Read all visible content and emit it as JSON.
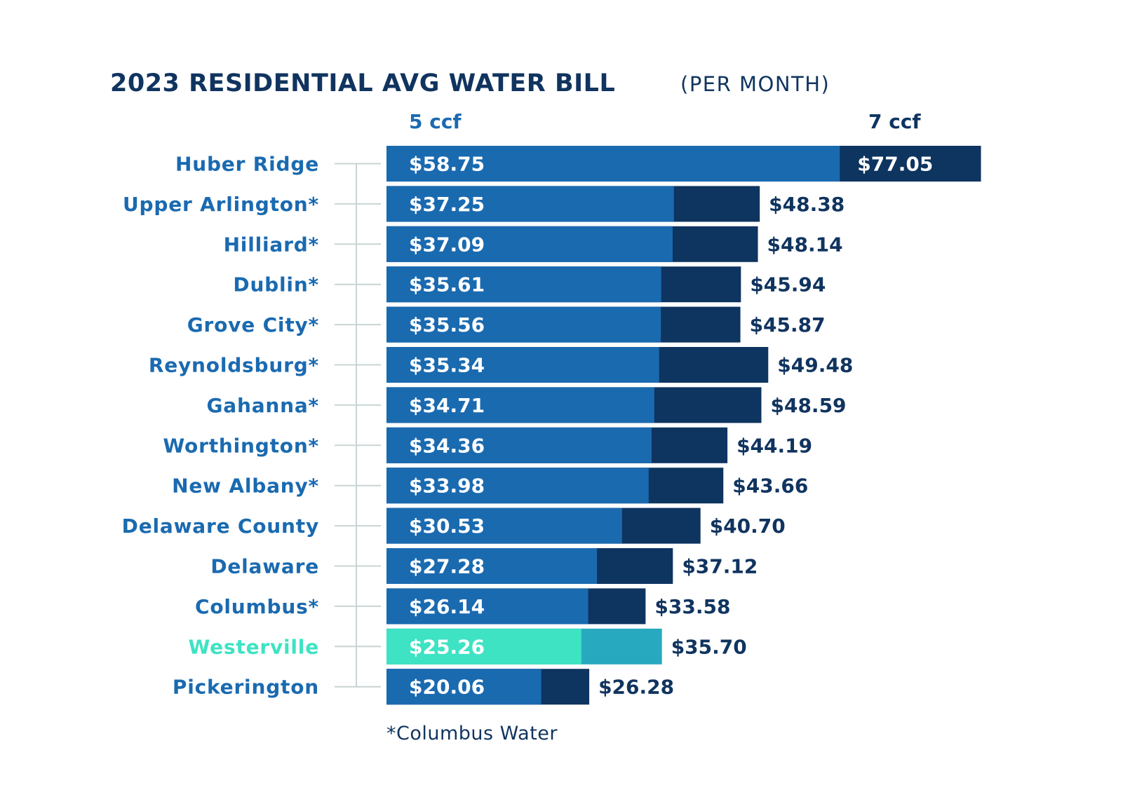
{
  "colors": {
    "primary": "#1a6ab0",
    "secondary": "#0e3460",
    "highlight_primary": "#3de3c3",
    "highlight_secondary": "#27a9bf",
    "label": "#1a6ab0",
    "highlight_label": "#3de3c3",
    "title": "#10345f",
    "axis": "#c9d4d4"
  },
  "chart_data": {
    "type": "bar",
    "orientation": "horizontal",
    "title": "2023 RESIDENTIAL AVG WATER BILL",
    "subtitle": "(PER MONTH)",
    "footnote": "*Columbus Water",
    "categories": [
      "Huber Ridge",
      "Upper Arlington*",
      "Hilliard*",
      "Dublin*",
      "Grove City*",
      "Reynoldsburg*",
      "Gahanna*",
      "Worthington*",
      "New Albany*",
      "Delaware County",
      "Delaware",
      "Columbus*",
      "Westerville",
      "Pickerington"
    ],
    "highlight_category": "Westerville",
    "series": [
      {
        "name": "5 ccf",
        "values": [
          58.75,
          37.25,
          37.09,
          35.61,
          35.56,
          35.34,
          34.71,
          34.36,
          33.98,
          30.53,
          27.28,
          26.14,
          25.26,
          20.06
        ],
        "labels": [
          "$58.75",
          "$37.25",
          "$37.09",
          "$35.61",
          "$35.56",
          "$35.34",
          "$34.71",
          "$34.36",
          "$33.98",
          "$30.53",
          "$27.28",
          "$26.14",
          "$25.26",
          "$20.06"
        ]
      },
      {
        "name": "7 ccf",
        "values": [
          77.05,
          48.38,
          48.14,
          45.94,
          45.87,
          49.48,
          48.59,
          44.19,
          43.66,
          40.7,
          37.12,
          33.58,
          35.7,
          26.28
        ],
        "labels": [
          "$77.05",
          "$48.38",
          "$48.14",
          "$45.94",
          "$45.87",
          "$49.48",
          "$48.59",
          "$44.19",
          "$43.66",
          "$40.70",
          "$37.12",
          "$33.58",
          "$35.70",
          "$26.28"
        ]
      }
    ],
    "xlim": [
      0,
      77.05
    ],
    "grid": false,
    "legend": "top"
  }
}
